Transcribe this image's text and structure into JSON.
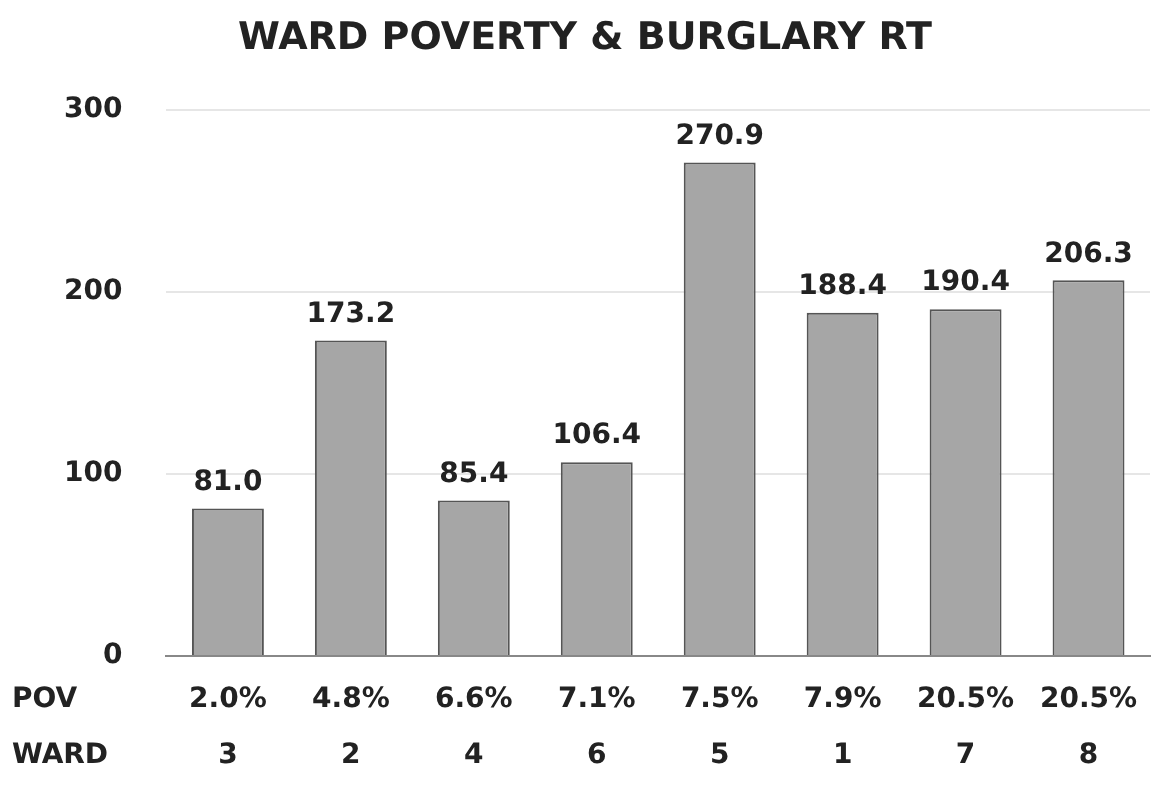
{
  "chart_data": {
    "type": "bar",
    "title": "WARD POVERTY & BURGLARY RT",
    "categories": [
      "2.0%\n3",
      "4.8%\n2",
      "6.6%\n4",
      "7.1%\n6",
      "7.5%\n5",
      "7.9%\n1",
      "20.5%\n7",
      "20.5%\n8"
    ],
    "values": [
      81.0,
      173.2,
      85.4,
      106.4,
      270.9,
      188.4,
      190.4,
      206.3
    ],
    "value_labels": [
      "81.0",
      "173.2",
      "85.4",
      "106.4",
      "270.9",
      "188.4",
      "190.4",
      "206.3"
    ],
    "color": "#a6a6a6",
    "ylim": [
      0,
      300
    ],
    "yticks": [
      0,
      100,
      200,
      300
    ],
    "grid": "y",
    "annotations": [
      "POV",
      "WARD"
    ]
  }
}
